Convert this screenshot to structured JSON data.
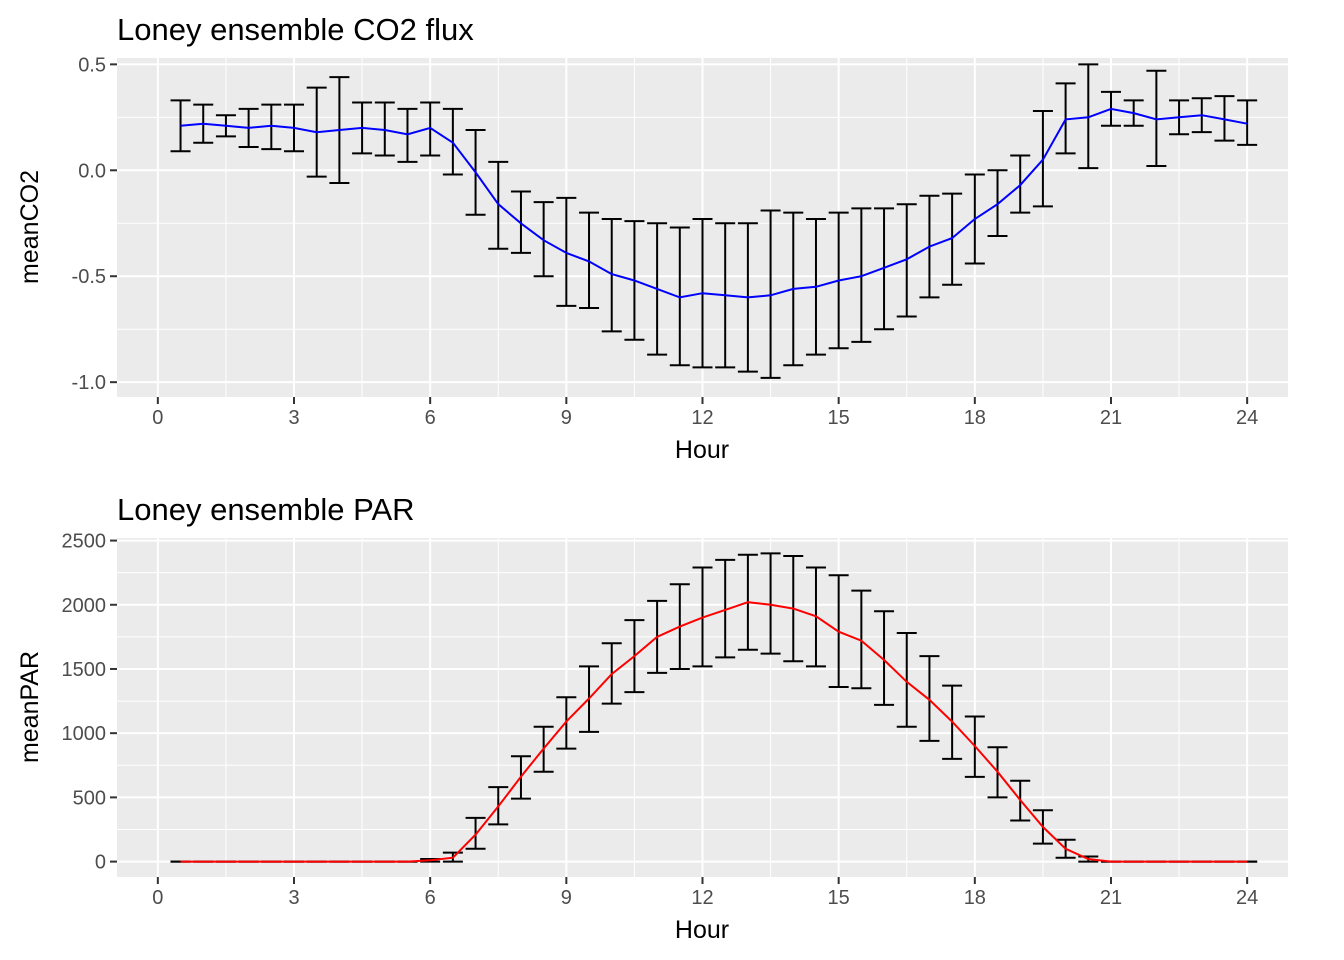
{
  "chart_data": [
    {
      "type": "line",
      "title": "Loney ensemble CO2 flux",
      "xlabel": "Hour",
      "ylabel": "meanCO2",
      "xlim": [
        -0.9,
        24.9
      ],
      "ylim": [
        -1.07,
        0.53
      ],
      "xticks": [
        0,
        3,
        6,
        9,
        12,
        15,
        18,
        21,
        24
      ],
      "xtick_labels": [
        "0",
        "3",
        "6",
        "9",
        "12",
        "15",
        "18",
        "21",
        "24"
      ],
      "yticks": [
        -1.0,
        -0.5,
        0.0,
        0.5
      ],
      "ytick_labels": [
        "-1.0",
        "-0.5",
        "0.0",
        "0.5"
      ],
      "grid": true,
      "line_color": "#0000ff",
      "error_color": "#000000",
      "x": [
        0.5,
        1.0,
        1.5,
        2.0,
        2.5,
        3.0,
        3.5,
        4.0,
        4.5,
        5.0,
        5.5,
        6.0,
        6.5,
        7.0,
        7.5,
        8.0,
        8.5,
        9.0,
        9.5,
        10.0,
        10.5,
        11.0,
        11.5,
        12.0,
        12.5,
        13.0,
        13.5,
        14.0,
        14.5,
        15.0,
        15.5,
        16.0,
        16.5,
        17.0,
        17.5,
        18.0,
        18.5,
        19.0,
        19.5,
        20.0,
        20.5,
        21.0,
        21.5,
        22.0,
        22.5,
        23.0,
        23.5,
        24.0
      ],
      "y": [
        0.21,
        0.22,
        0.21,
        0.2,
        0.21,
        0.2,
        0.18,
        0.19,
        0.2,
        0.19,
        0.17,
        0.2,
        0.13,
        -0.01,
        -0.16,
        -0.25,
        -0.33,
        -0.39,
        -0.43,
        -0.49,
        -0.52,
        -0.56,
        -0.6,
        -0.58,
        -0.59,
        -0.6,
        -0.59,
        -0.56,
        -0.55,
        -0.52,
        -0.5,
        -0.46,
        -0.42,
        -0.36,
        -0.32,
        -0.23,
        -0.16,
        -0.07,
        0.05,
        0.24,
        0.25,
        0.29,
        0.27,
        0.24,
        0.25,
        0.26,
        0.24,
        0.22
      ],
      "ymin": [
        0.09,
        0.13,
        0.16,
        0.11,
        0.1,
        0.09,
        -0.03,
        -0.06,
        0.08,
        0.07,
        0.04,
        0.07,
        -0.02,
        -0.21,
        -0.37,
        -0.39,
        -0.5,
        -0.64,
        -0.65,
        -0.76,
        -0.8,
        -0.87,
        -0.92,
        -0.93,
        -0.93,
        -0.95,
        -0.98,
        -0.92,
        -0.87,
        -0.84,
        -0.81,
        -0.75,
        -0.69,
        -0.6,
        -0.54,
        -0.44,
        -0.31,
        -0.2,
        -0.17,
        0.08,
        0.01,
        0.21,
        0.21,
        0.02,
        0.17,
        0.18,
        0.14,
        0.12
      ],
      "ymax": [
        0.33,
        0.31,
        0.26,
        0.29,
        0.31,
        0.31,
        0.39,
        0.44,
        0.32,
        0.32,
        0.29,
        0.32,
        0.29,
        0.19,
        0.04,
        -0.1,
        -0.15,
        -0.13,
        -0.2,
        -0.23,
        -0.24,
        -0.25,
        -0.27,
        -0.23,
        -0.25,
        -0.25,
        -0.19,
        -0.2,
        -0.23,
        -0.2,
        -0.18,
        -0.18,
        -0.16,
        -0.12,
        -0.11,
        -0.02,
        0.0,
        0.07,
        0.28,
        0.41,
        0.5,
        0.37,
        0.33,
        0.47,
        0.33,
        0.34,
        0.35,
        0.33
      ]
    },
    {
      "type": "line",
      "title": "Loney ensemble PAR",
      "xlabel": "Hour",
      "ylabel": "meanPAR",
      "xlim": [
        -0.9,
        24.9
      ],
      "ylim": [
        -120,
        2520
      ],
      "xticks": [
        0,
        3,
        6,
        9,
        12,
        15,
        18,
        21,
        24
      ],
      "xtick_labels": [
        "0",
        "3",
        "6",
        "9",
        "12",
        "15",
        "18",
        "21",
        "24"
      ],
      "yticks": [
        0,
        500,
        1000,
        1500,
        2000,
        2500
      ],
      "ytick_labels": [
        "0",
        "500",
        "1000",
        "1500",
        "2000",
        "2500"
      ],
      "grid": true,
      "line_color": "#ff0000",
      "error_color": "#000000",
      "x": [
        0.5,
        1.0,
        1.5,
        2.0,
        2.5,
        3.0,
        3.5,
        4.0,
        4.5,
        5.0,
        5.5,
        6.0,
        6.5,
        7.0,
        7.5,
        8.0,
        8.5,
        9.0,
        9.5,
        10.0,
        10.5,
        11.0,
        11.5,
        12.0,
        12.5,
        13.0,
        13.5,
        14.0,
        14.5,
        15.0,
        15.5,
        16.0,
        16.5,
        17.0,
        17.5,
        18.0,
        18.5,
        19.0,
        19.5,
        20.0,
        20.5,
        21.0,
        21.5,
        22.0,
        22.5,
        23.0,
        23.5,
        24.0
      ],
      "y": [
        0,
        0,
        0,
        0,
        0,
        0,
        0,
        0,
        0,
        0,
        0,
        10,
        30,
        210,
        430,
        660,
        880,
        1090,
        1270,
        1460,
        1600,
        1750,
        1830,
        1900,
        1960,
        2020,
        2000,
        1970,
        1910,
        1790,
        1720,
        1570,
        1400,
        1260,
        1090,
        900,
        700,
        480,
        270,
        100,
        20,
        0,
        0,
        0,
        0,
        0,
        0,
        0
      ],
      "ymin": [
        0,
        0,
        0,
        0,
        0,
        0,
        0,
        0,
        0,
        0,
        0,
        0,
        0,
        100,
        290,
        490,
        700,
        880,
        1010,
        1230,
        1320,
        1470,
        1500,
        1520,
        1590,
        1650,
        1620,
        1560,
        1520,
        1360,
        1350,
        1220,
        1050,
        940,
        800,
        660,
        500,
        320,
        140,
        30,
        0,
        0,
        0,
        0,
        0,
        0,
        0,
        0
      ],
      "ymax": [
        0,
        0,
        0,
        0,
        0,
        0,
        0,
        0,
        0,
        0,
        0,
        20,
        70,
        340,
        580,
        820,
        1050,
        1280,
        1520,
        1700,
        1880,
        2030,
        2160,
        2290,
        2350,
        2390,
        2400,
        2380,
        2290,
        2230,
        2110,
        1950,
        1780,
        1600,
        1370,
        1130,
        890,
        630,
        400,
        170,
        40,
        0,
        0,
        0,
        0,
        0,
        0,
        0
      ]
    }
  ]
}
